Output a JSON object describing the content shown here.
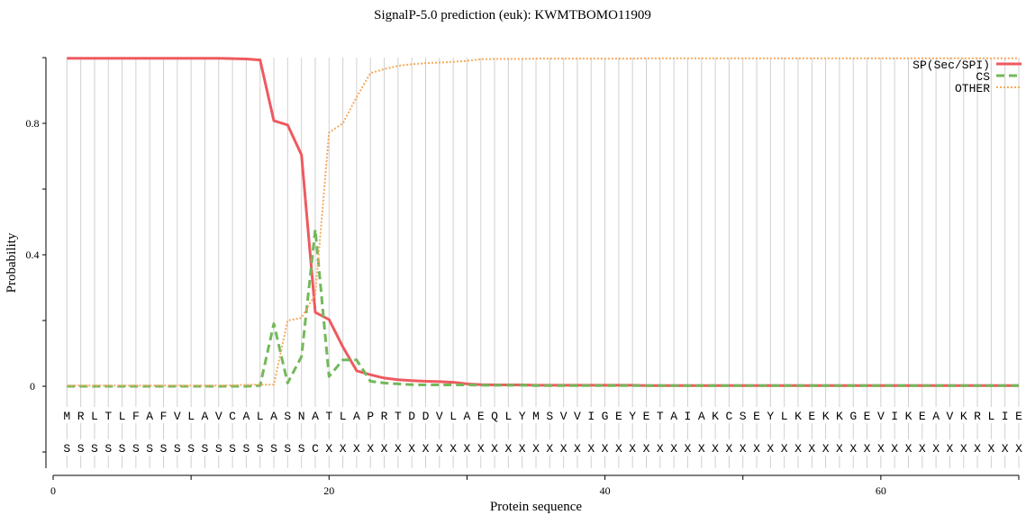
{
  "chart_data": {
    "type": "line",
    "title": "SignalP-5.0 prediction (euk):  KWMTBOMO11909",
    "xlabel": "Protein sequence",
    "ylabel": "Probability",
    "xlim": [
      0,
      70
    ],
    "ylim": [
      0,
      1
    ],
    "x_ticks": [
      0,
      20,
      40,
      60
    ],
    "y_ticks": [
      0,
      0.4,
      0.8
    ],
    "grid": "vertical lines at each residue",
    "legend_position": "top-right",
    "sequence": [
      "M",
      "R",
      "L",
      "T",
      "L",
      "F",
      "A",
      "F",
      "V",
      "L",
      "A",
      "V",
      "C",
      "A",
      "L",
      "A",
      "S",
      "N",
      "A",
      "T",
      "L",
      "A",
      "P",
      "R",
      "T",
      "D",
      "D",
      "V",
      "L",
      "A",
      "E",
      "Q",
      "L",
      "Y",
      "M",
      "S",
      "V",
      "V",
      "I",
      "G",
      "E",
      "Y",
      "E",
      "T",
      "A",
      "I",
      "A",
      "K",
      "C",
      "S",
      "E",
      "Y",
      "L",
      "K",
      "E",
      "K",
      "K",
      "G",
      "E",
      "V",
      "I",
      "K",
      "E",
      "A",
      "V",
      "K",
      "R",
      "L",
      "I",
      "E"
    ],
    "labels": [
      "S",
      "S",
      "S",
      "S",
      "S",
      "S",
      "S",
      "S",
      "S",
      "S",
      "S",
      "S",
      "S",
      "S",
      "S",
      "S",
      "S",
      "S",
      "C",
      "X",
      "X",
      "X",
      "X",
      "X",
      "X",
      "X",
      "X",
      "X",
      "X",
      "X",
      "X",
      "X",
      "X",
      "X",
      "X",
      "X",
      "X",
      "X",
      "X",
      "X",
      "X",
      "X",
      "X",
      "X",
      "X",
      "X",
      "X",
      "X",
      "X",
      "X",
      "X",
      "X",
      "X",
      "X",
      "X",
      "X",
      "X",
      "X",
      "X",
      "X",
      "X",
      "X",
      "X",
      "X",
      "X",
      "X",
      "X",
      "X",
      "X",
      "X"
    ],
    "series": [
      {
        "name": "SP(Sec/SPI)",
        "color": "#ee5a5f",
        "style": "solid",
        "values": [
          0.998,
          0.998,
          0.998,
          0.998,
          0.998,
          0.998,
          0.998,
          0.998,
          0.998,
          0.998,
          0.998,
          0.998,
          0.997,
          0.996,
          0.993,
          0.808,
          0.795,
          0.704,
          0.225,
          0.203,
          0.12,
          0.047,
          0.035,
          0.025,
          0.02,
          0.017,
          0.015,
          0.014,
          0.012,
          0.007,
          0.005,
          0.004,
          0.004,
          0.004,
          0.003,
          0.003,
          0.003,
          0.003,
          0.003,
          0.003,
          0.003,
          0.003,
          0.002,
          0.002,
          0.002,
          0.002,
          0.002,
          0.002,
          0.002,
          0.002,
          0.002,
          0.002,
          0.002,
          0.002,
          0.002,
          0.002,
          0.002,
          0.002,
          0.002,
          0.002,
          0.002,
          0.002,
          0.002,
          0.002,
          0.002,
          0.002,
          0.002,
          0.002,
          0.002,
          0.002
        ]
      },
      {
        "name": "CS",
        "color": "#73b85a",
        "style": "dashed",
        "values": [
          0,
          0,
          0,
          0,
          0,
          0,
          0,
          0,
          0,
          0,
          0,
          0,
          0,
          0,
          0.002,
          0.19,
          0.01,
          0.09,
          0.477,
          0.03,
          0.08,
          0.08,
          0.015,
          0.01,
          0.007,
          0.005,
          0.004,
          0.004,
          0.004,
          0.004,
          0.003,
          0.003,
          0.003,
          0.003,
          0.002,
          0.002,
          0.002,
          0.002,
          0.002,
          0.002,
          0.002,
          0.002,
          0.002,
          0.002,
          0.002,
          0.002,
          0.002,
          0.002,
          0.002,
          0.002,
          0.002,
          0.002,
          0.002,
          0.002,
          0.002,
          0.002,
          0.002,
          0.002,
          0.002,
          0.002,
          0.002,
          0.002,
          0.002,
          0.002,
          0.002,
          0.002,
          0.002,
          0.002,
          0.002,
          0.002
        ]
      },
      {
        "name": "OTHER",
        "color": "#f7a95c",
        "style": "dotted",
        "values": [
          0.002,
          0.002,
          0.002,
          0.002,
          0.002,
          0.002,
          0.002,
          0.002,
          0.002,
          0.002,
          0.002,
          0.002,
          0.003,
          0.004,
          0.005,
          0.005,
          0.2,
          0.208,
          0.28,
          0.772,
          0.8,
          0.88,
          0.953,
          0.965,
          0.975,
          0.98,
          0.983,
          0.985,
          0.987,
          0.99,
          0.995,
          0.996,
          0.996,
          0.996,
          0.997,
          0.997,
          0.997,
          0.997,
          0.997,
          0.997,
          0.997,
          0.997,
          0.998,
          0.998,
          0.998,
          0.998,
          0.998,
          0.998,
          0.998,
          0.998,
          0.998,
          0.998,
          0.998,
          0.998,
          0.998,
          0.998,
          0.998,
          0.998,
          0.998,
          0.998,
          0.998,
          0.998,
          0.998,
          0.998,
          0.998,
          0.998,
          0.998,
          0.998,
          0.998,
          0.998
        ]
      }
    ]
  }
}
